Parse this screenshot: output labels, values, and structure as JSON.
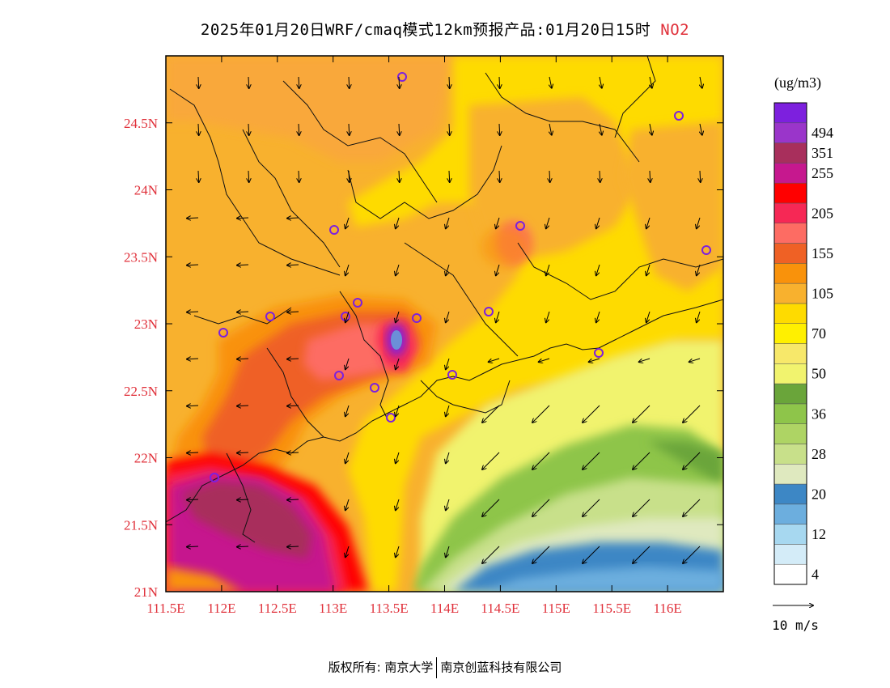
{
  "title": {
    "main": "2025年01月20日WRF/cmaq模式12km预报产品:01月20日15时",
    "pollutant": "NO2"
  },
  "axes": {
    "lon_ticks": [
      "111.5E",
      "112E",
      "112.5E",
      "113E",
      "113.5E",
      "114E",
      "114.5E",
      "115E",
      "115.5E",
      "116E"
    ],
    "lat_ticks": [
      "24.5N",
      "24N",
      "23.5N",
      "23N",
      "22.5N",
      "22N",
      "21.5N",
      "21N"
    ],
    "lon_range": [
      111.5,
      116.5
    ],
    "lat_range": [
      21.0,
      25.0
    ]
  },
  "colorbar": {
    "unit": "(ug/m3)",
    "colors": [
      "#ffffff",
      "#d4ecf8",
      "#a7d8f0",
      "#6caede",
      "#3d87c5",
      "#dfe9bf",
      "#c8e08a",
      "#aed464",
      "#8ec54a",
      "#6aa53a",
      "#f1f36e",
      "#f7e86a",
      "#fff000",
      "#fedb00",
      "#f8b12e",
      "#f9920b",
      "#ef6125",
      "#fd6c63",
      "#f62855",
      "#ff0000",
      "#c6188e",
      "#a82f5c",
      "#9a35ca",
      "#7d20de"
    ],
    "labels": [
      "4",
      "12",
      "20",
      "28",
      "36",
      "50",
      "70",
      "105",
      "155",
      "205",
      "255",
      "351",
      "494"
    ],
    "label_after_index": [
      0,
      2,
      4,
      6,
      8,
      10,
      12,
      14,
      16,
      18,
      20,
      21,
      22
    ]
  },
  "wind_legend": {
    "label": "10 m/s"
  },
  "footer": {
    "copyright": "版权所有: 南京大学",
    "company": "南京创蓝科技有限公司"
  },
  "map_features": {
    "high_concentration_center": "Guangzhou/Foshan area (~113.5E, 22.9N)",
    "colors": {
      "background_band": "#f8b12e",
      "axis_label": "#e0303a",
      "station_marker": "#7d20de"
    }
  }
}
